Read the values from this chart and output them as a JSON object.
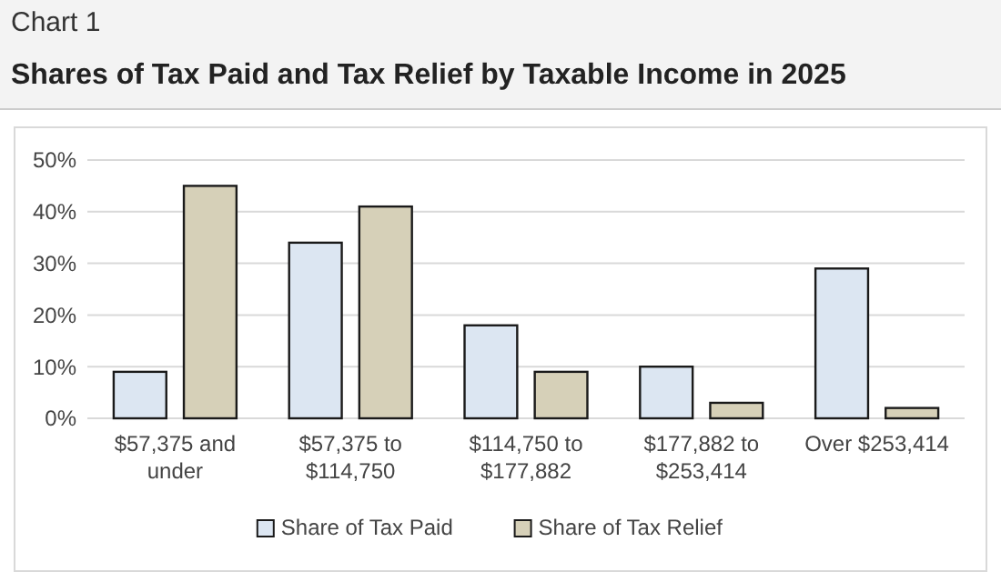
{
  "chart_data": {
    "type": "bar",
    "annotations": [
      "Chart 1"
    ],
    "title": "Shares of Tax Paid and Tax Relief by Taxable Income in 2025",
    "categories": [
      "$57,375 and under",
      "$57,375 to $114,750",
      "$114,750 to $177,882",
      "$177,882 to $253,414",
      "Over $253,414"
    ],
    "series": [
      {
        "name": "Share of Tax Paid",
        "color": "#dce6f2",
        "values": [
          9,
          34,
          18,
          10,
          29
        ]
      },
      {
        "name": "Share of Tax Relief",
        "color": "#d6d0b8",
        "values": [
          45,
          41,
          9,
          3,
          2
        ]
      }
    ],
    "ylim": [
      0,
      50
    ],
    "yticks": [
      {
        "value": 0,
        "label": "0%"
      },
      {
        "value": 10,
        "label": "10%"
      },
      {
        "value": 20,
        "label": "20%"
      },
      {
        "value": 30,
        "label": "30%"
      },
      {
        "value": 40,
        "label": "40%"
      },
      {
        "value": 50,
        "label": "50%"
      }
    ],
    "grid": "y",
    "legend": "bottom"
  }
}
